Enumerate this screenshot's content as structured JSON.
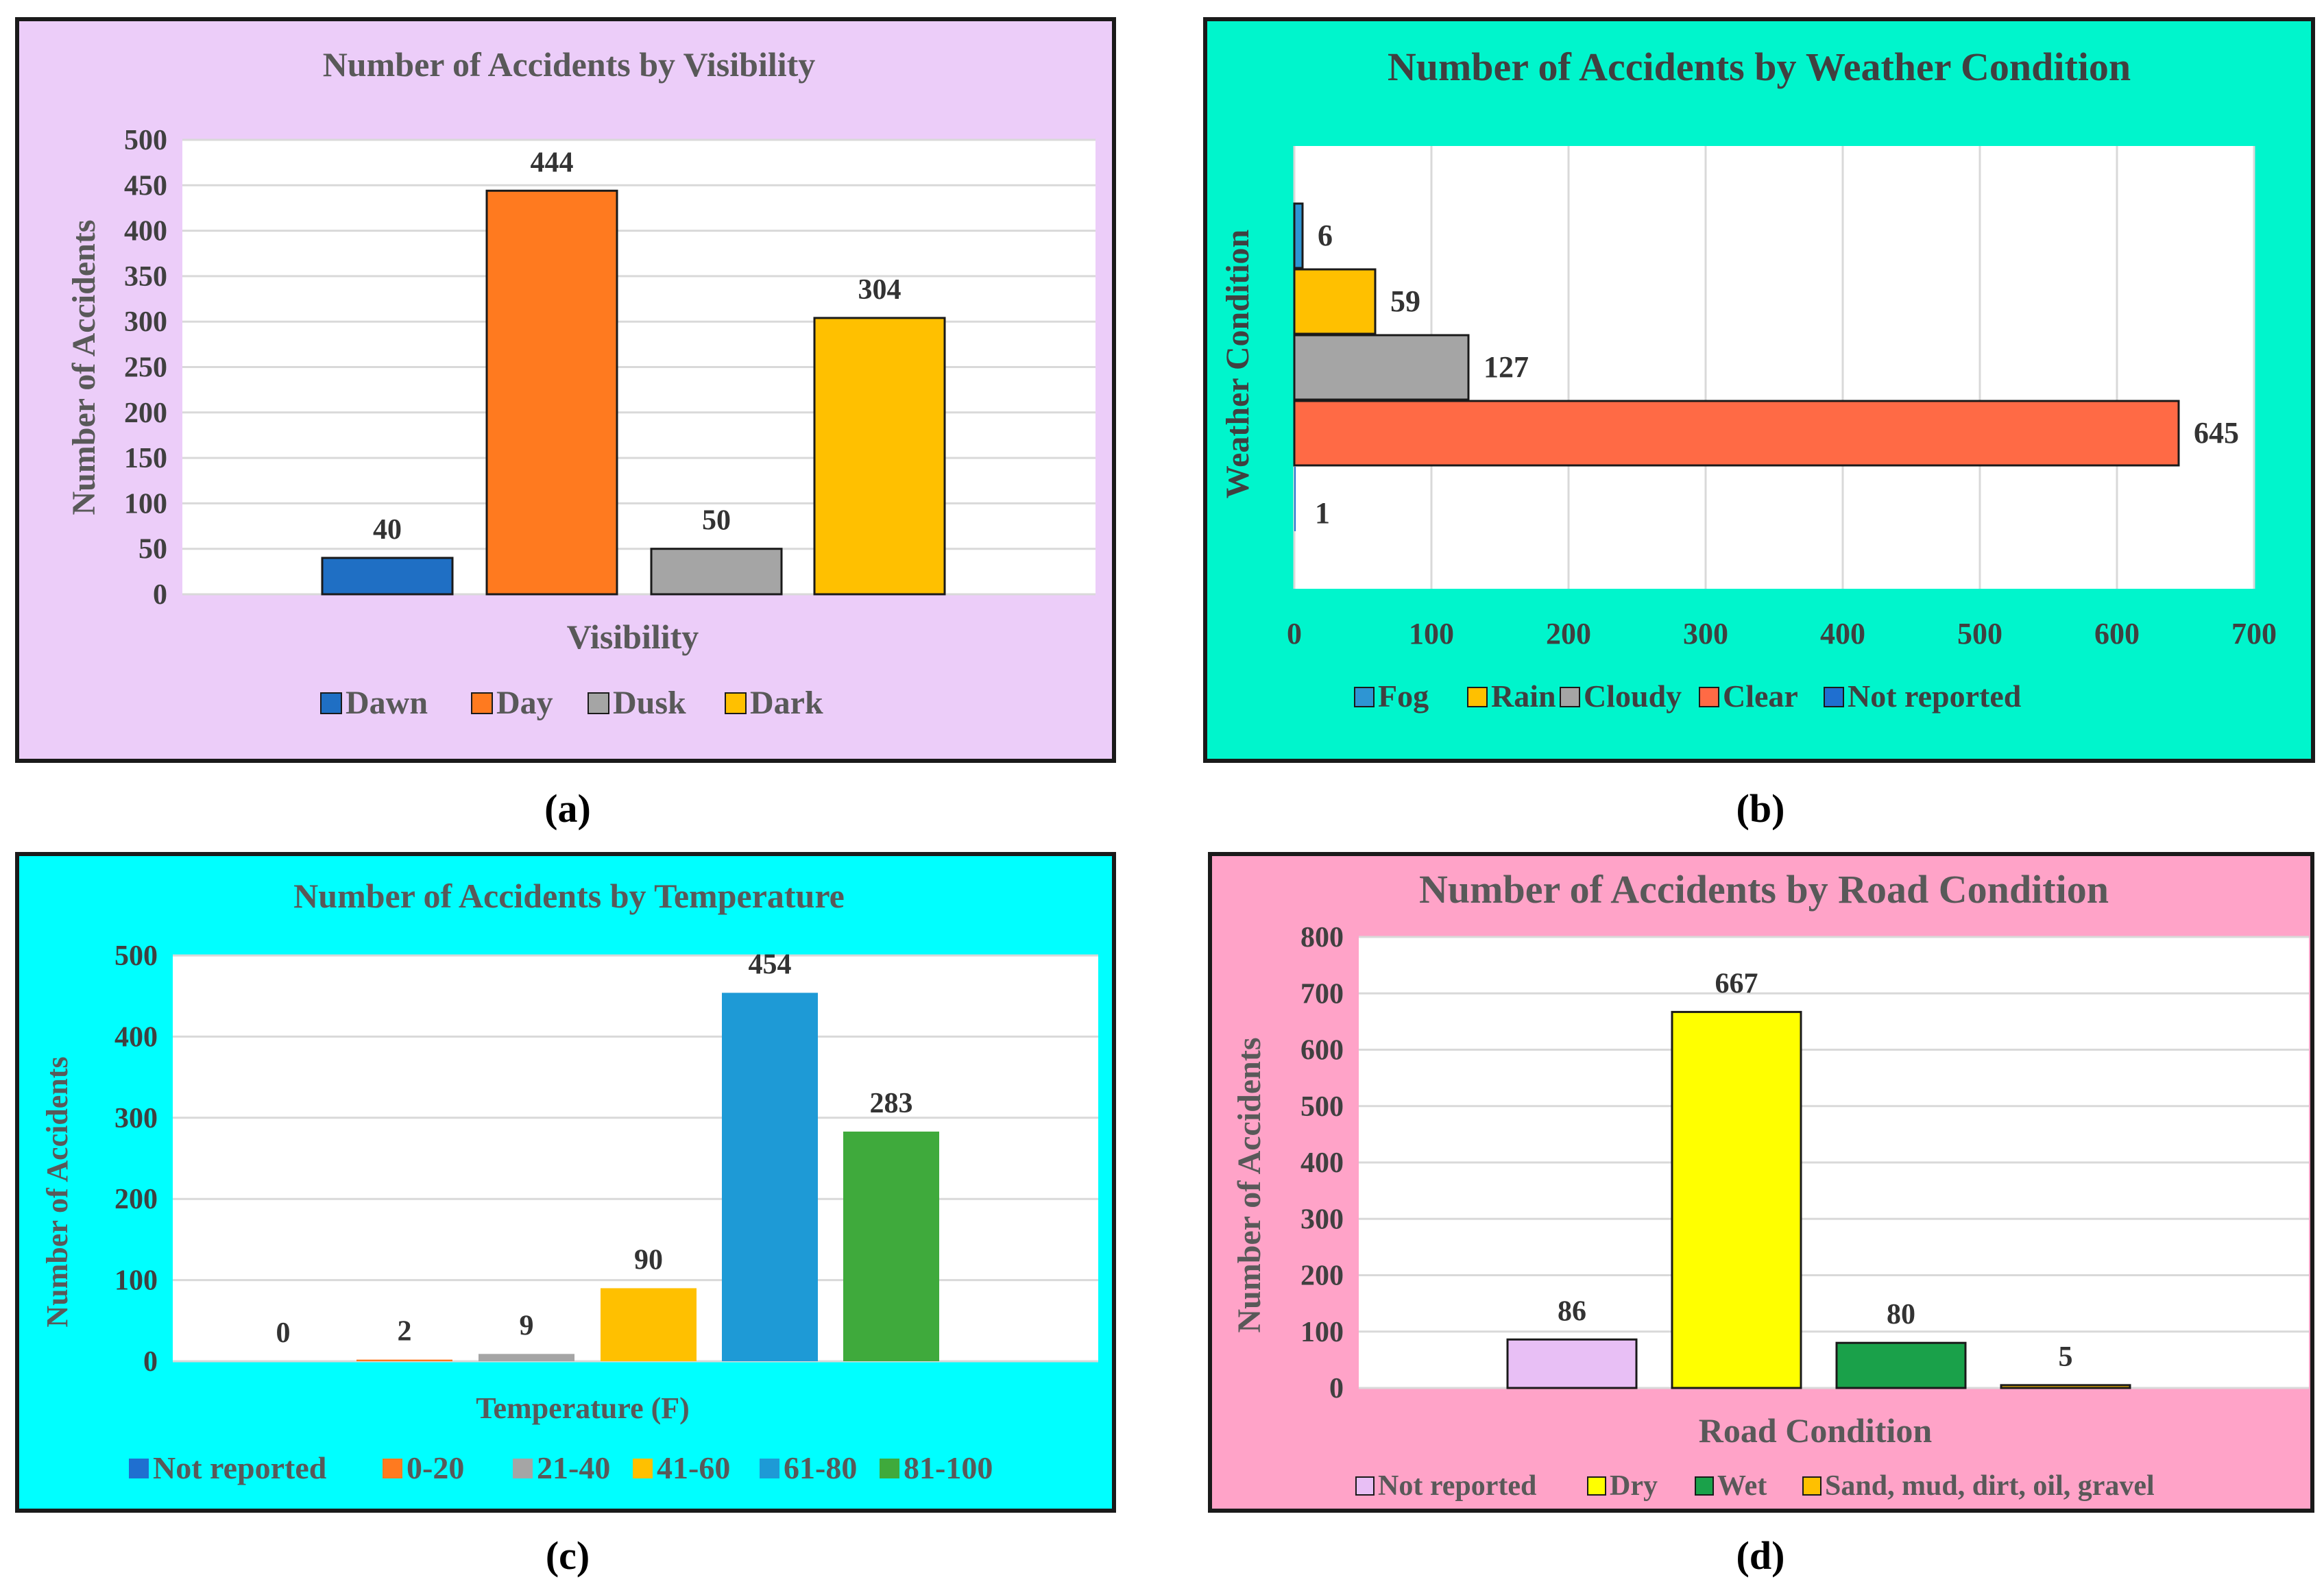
{
  "captions": [
    "(a)",
    "(b)",
    "(c)",
    "(d)"
  ],
  "colors": {
    "panel_a_bg": "#ECCDF9",
    "panel_b_bg": "#00F5CC",
    "panel_c_bg": "#00FFFF",
    "panel_d_bg": "#FFA3C8"
  },
  "chart_data": [
    {
      "id": "a",
      "type": "bar",
      "orientation": "vertical",
      "title": "Number of Accidents by Visibility",
      "xlabel": "Visibility",
      "ylabel": "Number of Accidents",
      "categories": [
        "Dawn",
        "Day",
        "Dusk",
        "Dark"
      ],
      "values": [
        40,
        444,
        50,
        304
      ],
      "colors": [
        "#1F6FC4",
        "#FF7A1F",
        "#A5A5A5",
        "#FFC000"
      ],
      "ylim": [
        0,
        500
      ],
      "yticks": [
        0,
        50,
        100,
        150,
        200,
        250,
        300,
        350,
        400,
        450,
        500
      ],
      "legend": [
        "Dawn",
        "Day",
        "Dusk",
        "Dark"
      ],
      "legend_position": "bottom"
    },
    {
      "id": "b",
      "type": "bar",
      "orientation": "horizontal",
      "title": "Number of Accidents by Weather Condition",
      "xlabel": "",
      "ylabel": "Weather Condition",
      "categories": [
        "Fog",
        "Rain",
        "Cloudy",
        "Clear",
        "Not reported"
      ],
      "values": [
        6,
        59,
        127,
        645,
        1
      ],
      "colors": [
        "#2E95D3",
        "#FFC000",
        "#A5A5A5",
        "#FF6A45",
        "#1F6FD0"
      ],
      "xlim": [
        0,
        700
      ],
      "xticks": [
        0,
        100,
        200,
        300,
        400,
        500,
        600,
        700
      ],
      "legend": [
        "Fog",
        "Rain",
        "Cloudy",
        "Clear",
        "Not reported"
      ],
      "legend_position": "bottom"
    },
    {
      "id": "c",
      "type": "bar",
      "orientation": "vertical",
      "title": "Number of Accidents by Temperature",
      "xlabel": "Temperature (F)",
      "ylabel": "Number of Accidents",
      "categories": [
        "Not  reported",
        "0-20",
        "21-40",
        "41-60",
        "61-80",
        "81-100"
      ],
      "values": [
        0,
        2,
        9,
        90,
        454,
        283
      ],
      "colors": [
        "#1F6FD0",
        "#FF7A1F",
        "#A5A5A5",
        "#FFC000",
        "#1E9AD6",
        "#3FAA3C"
      ],
      "ylim": [
        0,
        500
      ],
      "yticks": [
        0,
        100,
        200,
        300,
        400,
        500
      ],
      "legend": [
        "Not  reported",
        "0-20",
        "21-40",
        "41-60",
        "61-80",
        "81-100"
      ],
      "legend_position": "bottom"
    },
    {
      "id": "d",
      "type": "bar",
      "orientation": "vertical",
      "title": "Number of Accidents by Road Condition",
      "xlabel": "Road Condition",
      "ylabel": "Number of Accidents",
      "categories": [
        "Not reported",
        "Dry",
        "Wet",
        "Sand, mud, dirt, oil, gravel"
      ],
      "values": [
        86,
        667,
        80,
        5
      ],
      "colors": [
        "#E8BFF5",
        "#FFFF00",
        "#1AA14A",
        "#FFC000"
      ],
      "ylim": [
        0,
        800
      ],
      "yticks": [
        0,
        100,
        200,
        300,
        400,
        500,
        600,
        700,
        800
      ],
      "legend": [
        "Not reported",
        "Dry",
        "Wet",
        "Sand, mud, dirt, oil, gravel"
      ],
      "legend_position": "bottom"
    }
  ]
}
